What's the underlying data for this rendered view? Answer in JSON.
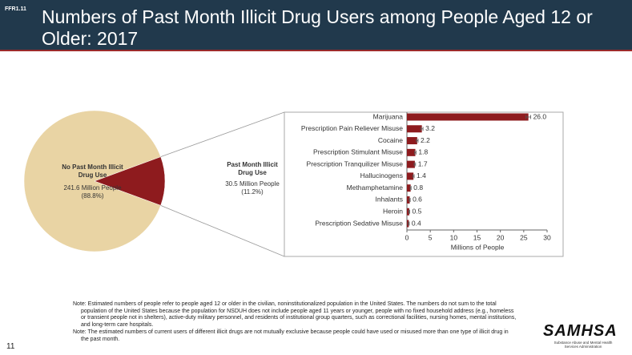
{
  "slide": {
    "code": "FFR1.11",
    "title": "Numbers of Past Month Illicit Drug Users among People Aged 12 or Older: 2017",
    "notes": [
      "Note: Estimated numbers of people refer to people aged 12 or older in the civilian, noninstitutionalized population in the United States. The numbers do not sum to the total population of the United States because the population for NSDUH does not include people aged 11 years or younger, people with no fixed household address (e.g., homeless or transient people not in shelters), active-duty military personnel, and residents of institutional group quarters, such as correctional facilities, nursing homes, mental institutions, and long-term care hospitals.",
      "Note: The estimated numbers of current users of different illicit drugs are not mutually exclusive because people could have used or misused more than one type of illicit drug in the past month."
    ],
    "page_number": 11,
    "logo": "SAMHSA",
    "logo_caption": "Substance Abuse and Mental Health Services Administration"
  },
  "chart_data": [
    {
      "type": "pie",
      "categories": [
        "No Past Month Illicit Drug Use",
        "Past Month Illicit Drug Use"
      ],
      "values": [
        88.8,
        11.2
      ],
      "value_labels": [
        "(88.8%)",
        "(11.2%)"
      ],
      "count_labels": [
        "241.6 Million People",
        "30.5 Million People"
      ],
      "colors": [
        "#e9d4a4",
        "#8e1b1e"
      ]
    },
    {
      "type": "bar",
      "orientation": "horizontal",
      "categories": [
        "Marijuana",
        "Prescription Pain Reliever Misuse",
        "Cocaine",
        "Prescription Stimulant Misuse",
        "Prescription Tranquilizer Misuse",
        "Hallucinogens",
        "Methamphetamine",
        "Inhalants",
        "Heroin",
        "Prescription Sedative Misuse"
      ],
      "values": [
        26.0,
        3.2,
        2.2,
        1.8,
        1.7,
        1.4,
        0.8,
        0.6,
        0.5,
        0.4
      ],
      "value_labels": [
        "26.0",
        "3.2",
        "2.2",
        "1.8",
        "1.7",
        "1.4",
        "0.8",
        "0.6",
        "0.5",
        "0.4"
      ],
      "errors": [
        0.5,
        0.25,
        0.2,
        0.15,
        0.15,
        0.15,
        0.1,
        0.1,
        0.1,
        0.1
      ],
      "color": "#8e1b1e",
      "xlim": [
        0,
        30
      ],
      "xticks": [
        0,
        5,
        10,
        15,
        20,
        25,
        30
      ],
      "xlabel": "Millions of People"
    }
  ]
}
